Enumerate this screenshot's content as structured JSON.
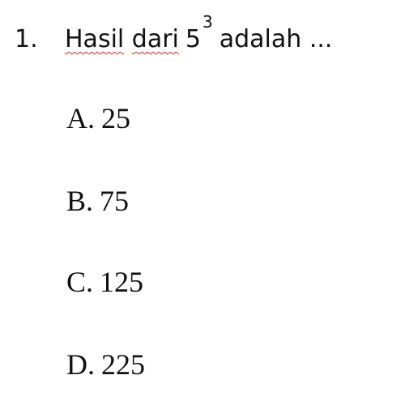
{
  "question": {
    "number": "1.",
    "word1": "Hasil",
    "word2": "dari",
    "base": "5",
    "exponent": "3",
    "after": "adalah ..."
  },
  "options": [
    {
      "letter": "A.",
      "value": "25"
    },
    {
      "letter": "B.",
      "value": "75"
    },
    {
      "letter": "C.",
      "value": "125"
    },
    {
      "letter": "D.",
      "value": "225"
    }
  ]
}
